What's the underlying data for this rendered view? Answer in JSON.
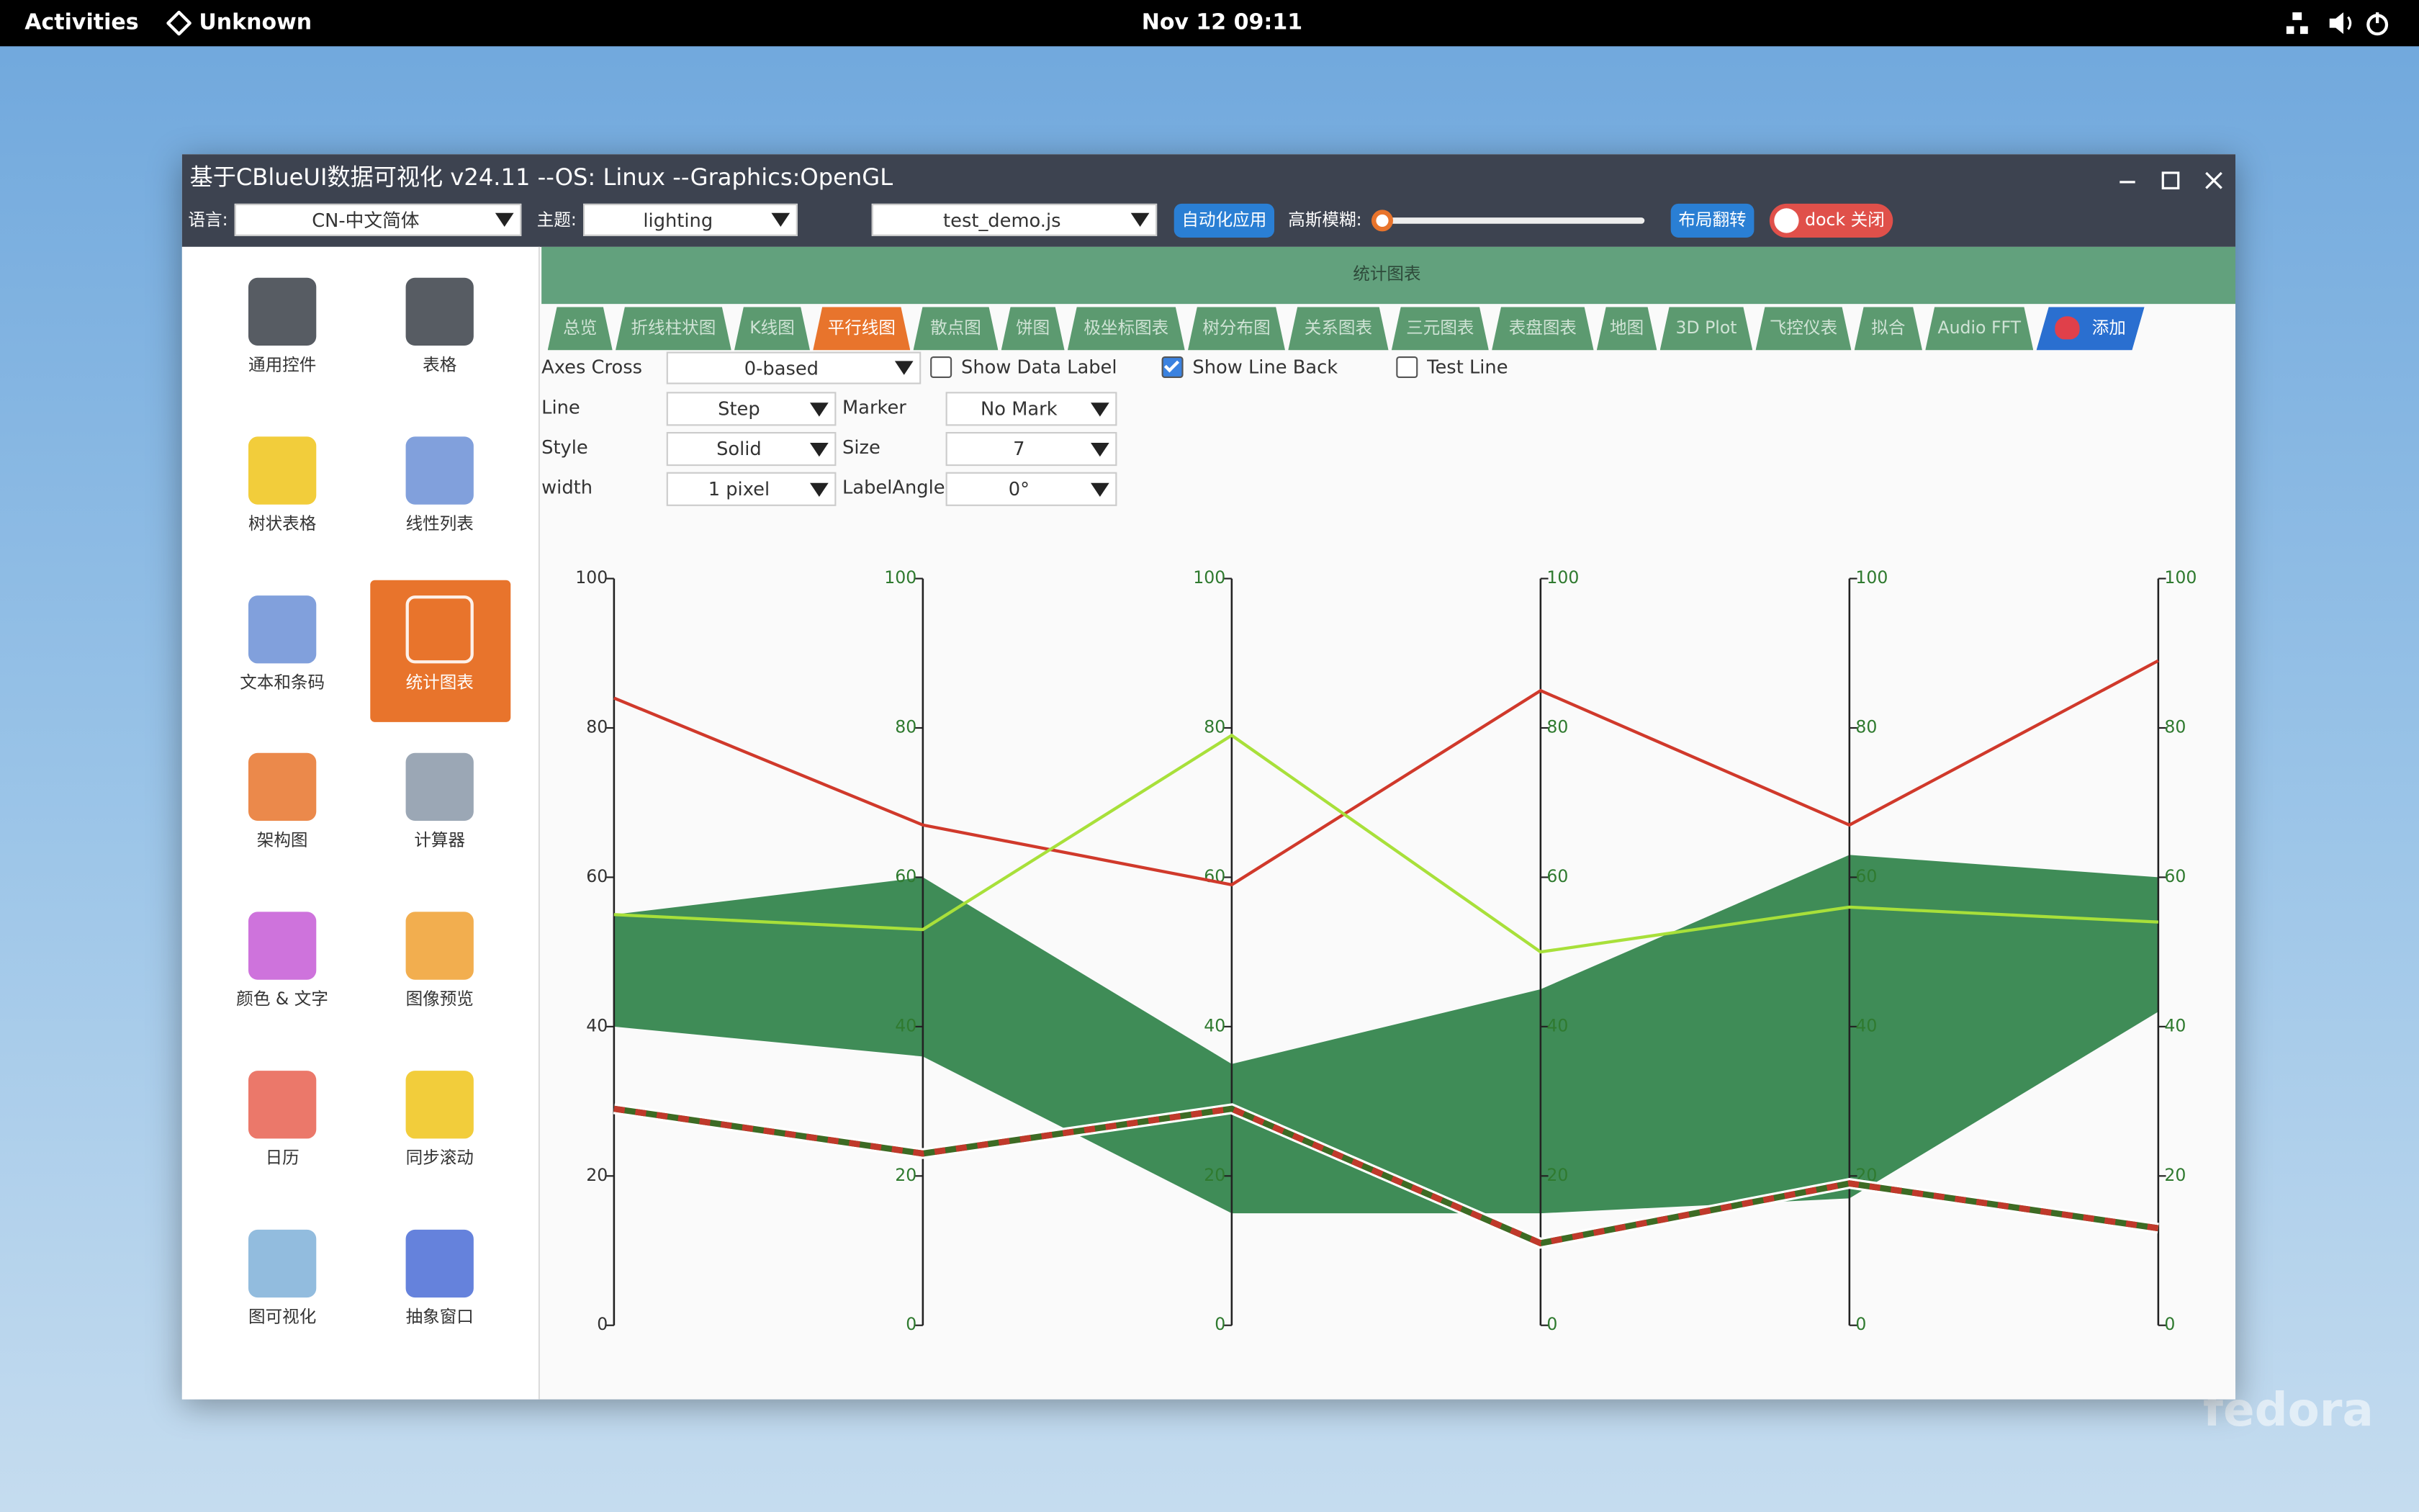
{
  "topbar": {
    "activities": "Activities",
    "app": "Unknown",
    "clock": "Nov 12  09:11"
  },
  "window": {
    "title": "基于CBlueUI数据可视化  v24.11  --OS: Linux  --Graphics:OpenGL"
  },
  "toolbar": {
    "language_label": "语言:",
    "language": "CN-中文简体",
    "theme_label": "主题:",
    "theme": "lighting",
    "script": "test_demo.js",
    "auto_apply": "自动化应用",
    "blur_label": "高斯模糊:",
    "layout_flip": "布局翻转",
    "dock": "dock 关闭"
  },
  "sidebar": {
    "selected": 5,
    "items": [
      "通用控件",
      "表格",
      "树状表格",
      "线性列表",
      "文本和条码",
      "统计图表",
      "架构图",
      "计算器",
      "颜色 & 文字",
      "图像预览",
      "日历",
      "同步滚动",
      "图可视化",
      "抽象窗口"
    ]
  },
  "panel_title": "统计图表",
  "tabs": {
    "selected": 3,
    "items": [
      "总览",
      "折线柱状图",
      "K线图",
      "平行线图",
      "散点图",
      "饼图",
      "极坐标图表",
      "树分布图",
      "关系图表",
      "三元图表",
      "表盘图表",
      "地图",
      "3D Plot",
      "飞控仪表",
      "拟合",
      "Audio FFT"
    ],
    "add": "添加"
  },
  "options": {
    "axes_cross_label": "Axes Cross",
    "axes_cross": "0-based",
    "checkboxes": [
      {
        "label": "Show Data Label",
        "checked": false
      },
      {
        "label": "Show Line Back",
        "checked": true
      },
      {
        "label": "Test Line",
        "checked": false
      }
    ],
    "rows": [
      [
        "Line",
        "Step",
        "Marker",
        "No Mark"
      ],
      [
        "Style",
        "Solid",
        "Size",
        "7"
      ],
      [
        "width",
        "1 pixel",
        "LabelAngle",
        "0°"
      ]
    ]
  },
  "chart_data": {
    "type": "parallel",
    "categories": [
      null,
      null,
      null,
      null,
      null,
      null
    ],
    "ylim": [
      0,
      100
    ],
    "yticks": [
      0,
      20,
      40,
      60,
      80,
      100
    ],
    "band": {
      "color": "#3f8c57",
      "upper": [
        55,
        60,
        35,
        45,
        63,
        60
      ],
      "lower": [
        40,
        36,
        15,
        15,
        17,
        42
      ]
    },
    "series": [
      {
        "color": "#d0392b",
        "values": [
          84,
          67,
          59,
          85,
          67,
          89
        ]
      },
      {
        "color": "#a8e03a",
        "values": [
          55,
          53,
          79,
          50,
          56,
          54
        ]
      },
      {
        "color": "#c0392b",
        "dash_color": "#3d6b24",
        "values": [
          29,
          23,
          29,
          11,
          19,
          13
        ]
      }
    ]
  },
  "watermark": "fedora"
}
